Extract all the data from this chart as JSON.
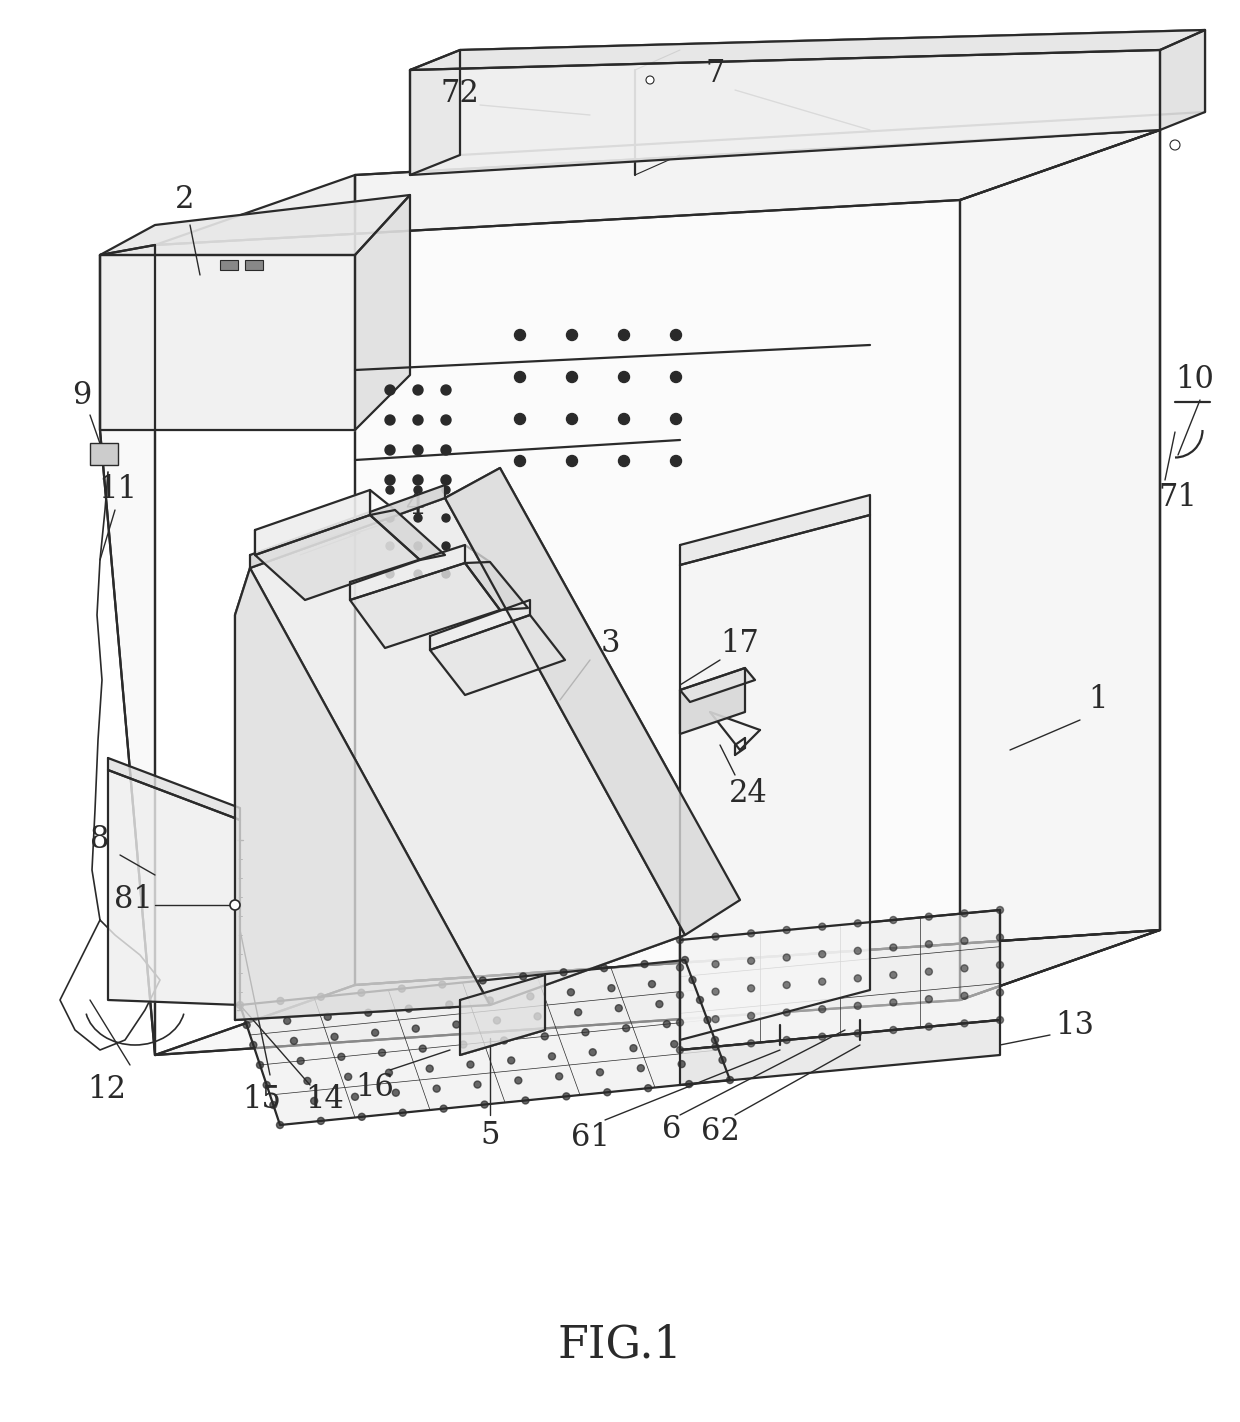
{
  "title": "FIG.1",
  "bg_color": "#ffffff",
  "line_color": "#2a2a2a",
  "label_fontsize": 22,
  "title_fontsize": 32,
  "lw": 1.6
}
